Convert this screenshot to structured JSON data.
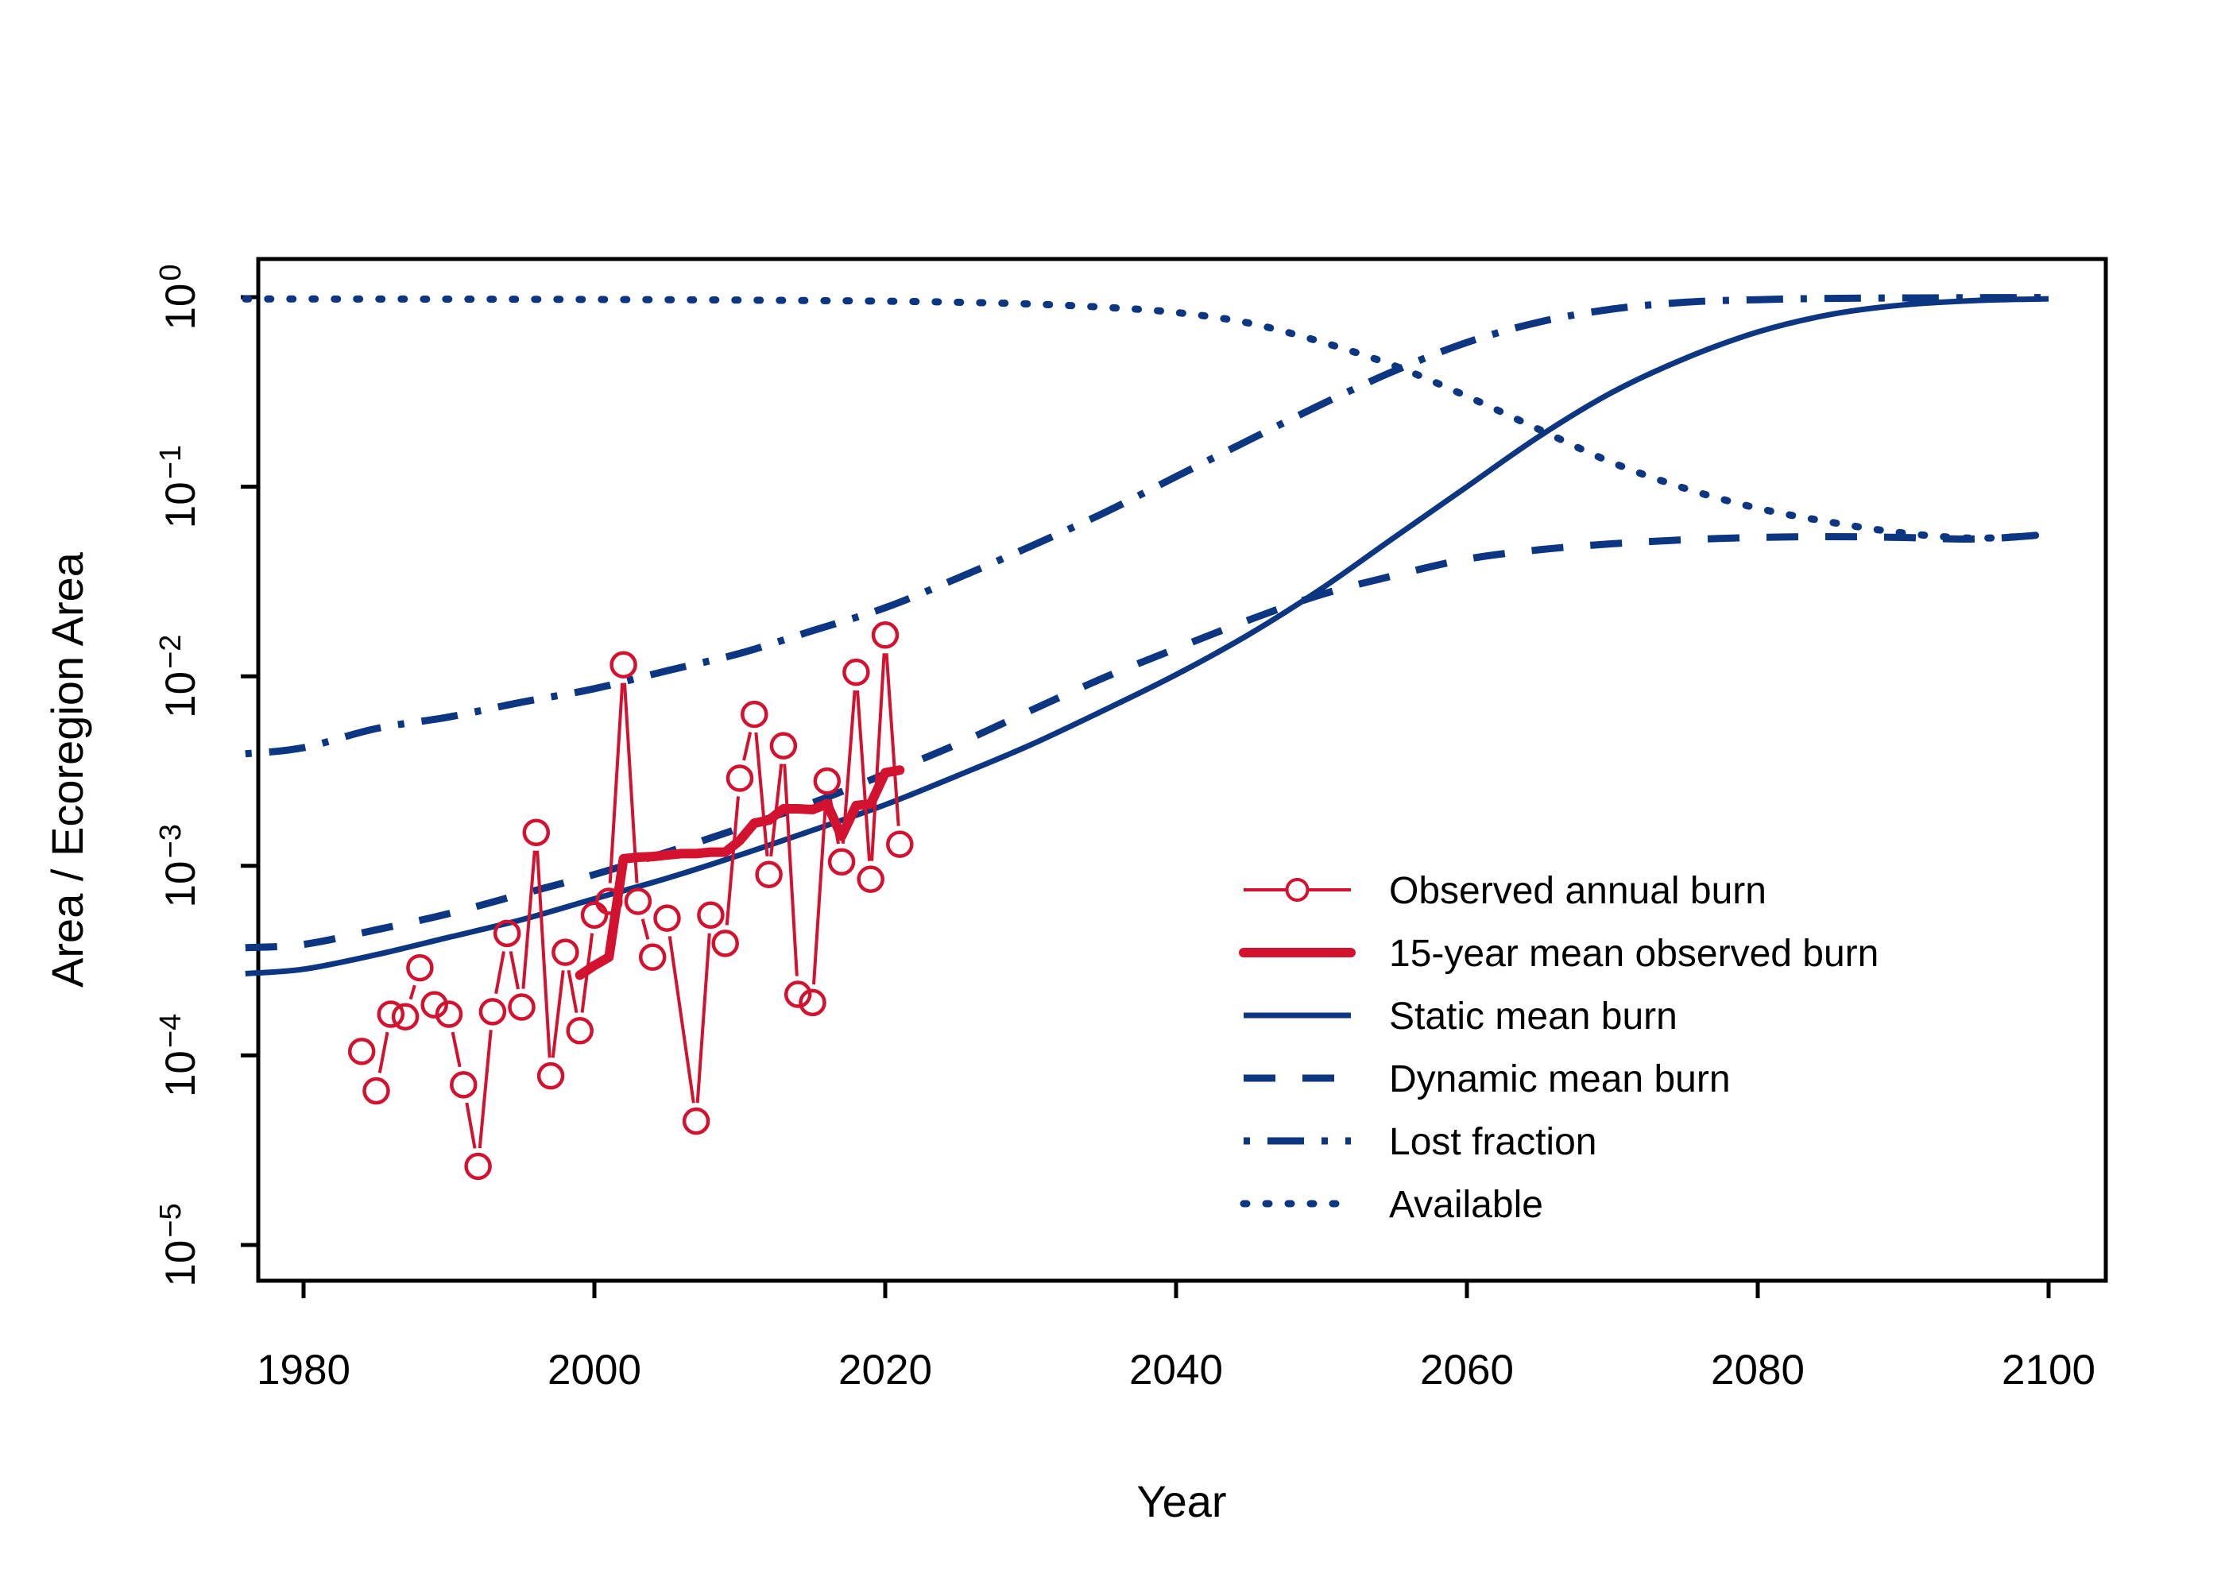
{
  "page": {
    "background": "#ffffff"
  },
  "chart_data": {
    "type": "line",
    "title": "",
    "xlabel": "Year",
    "ylabel": "Area / Ecoregion Area",
    "x_axis": {
      "ticks": [
        1980,
        2000,
        2020,
        2040,
        2060,
        2080,
        2100
      ],
      "min": 1976,
      "max": 2104
    },
    "y_axis": {
      "scale": "log10",
      "base": 10,
      "tick_exponents": [
        0,
        -1,
        -2,
        -3,
        -4,
        -5
      ],
      "min_exp": -5.2,
      "max_exp": 0.2,
      "grid": false
    },
    "colors": {
      "red": "#D2122E",
      "blue": "#0C3582",
      "axis": "#000000",
      "text": "#000000"
    },
    "series": [
      {
        "id": "observed",
        "name": "Observed annual burn",
        "color": "red",
        "style": "open-circles-line",
        "line_width": 4,
        "marker_radius": 15,
        "points": [
          [
            1984,
            0.000105
          ],
          [
            1985,
            6.5e-05
          ],
          [
            1986,
            0.000165
          ],
          [
            1987,
            0.00016
          ],
          [
            1988,
            0.00029
          ],
          [
            1989,
            0.000185
          ],
          [
            1990,
            0.000165
          ],
          [
            1991,
            7e-05
          ],
          [
            1992,
            2.6e-05
          ],
          [
            1993,
            0.00017
          ],
          [
            1994,
            0.00044
          ],
          [
            1995,
            0.00018
          ],
          [
            1996,
            0.0015
          ],
          [
            1997,
            7.8e-05
          ],
          [
            1998,
            0.00035
          ],
          [
            1999,
            0.000135
          ],
          [
            2000,
            0.00055
          ],
          [
            2001,
            0.00065
          ],
          [
            2002,
            0.0115
          ],
          [
            2003,
            0.00065
          ],
          [
            2004,
            0.00033
          ],
          [
            2005,
            0.00053
          ],
          [
            2007,
            4.5e-05
          ],
          [
            2008,
            0.00055
          ],
          [
            2009,
            0.00039
          ],
          [
            2010,
            0.0029
          ],
          [
            2011,
            0.0063
          ],
          [
            2012,
            0.0009
          ],
          [
            2013,
            0.0043
          ],
          [
            2014,
            0.00021
          ],
          [
            2015,
            0.00019
          ],
          [
            2016,
            0.0028
          ],
          [
            2017,
            0.00105
          ],
          [
            2018,
            0.0105
          ],
          [
            2019,
            0.00085
          ],
          [
            2020,
            0.0165
          ],
          [
            2021,
            0.0013
          ]
        ]
      },
      {
        "id": "mean15",
        "name": "15-year mean observed burn",
        "color": "red",
        "style": "solid",
        "line_width": 12,
        "points": [
          [
            1999,
            0.000265
          ],
          [
            2000,
            0.000298
          ],
          [
            2001,
            0.00033
          ],
          [
            2002,
            0.00109
          ],
          [
            2003,
            0.00111
          ],
          [
            2004,
            0.00112
          ],
          [
            2005,
            0.00114
          ],
          [
            2006,
            0.00116
          ],
          [
            2007,
            0.00116
          ],
          [
            2008,
            0.00118
          ],
          [
            2009,
            0.00118
          ],
          [
            2010,
            0.00136
          ],
          [
            2011,
            0.00168
          ],
          [
            2012,
            0.00174
          ],
          [
            2013,
            0.002
          ],
          [
            2014,
            0.002
          ],
          [
            2015,
            0.00198
          ],
          [
            2016,
            0.00212
          ],
          [
            2017,
            0.00143
          ],
          [
            2018,
            0.00208
          ],
          [
            2019,
            0.00212
          ],
          [
            2020,
            0.0031
          ],
          [
            2021,
            0.0032
          ]
        ]
      },
      {
        "id": "static",
        "name": "Static mean burn",
        "color": "blue",
        "style": "solid",
        "line_width": 7,
        "smooth": true,
        "points": [
          [
            1976,
            0.00027
          ],
          [
            1980,
            0.000285
          ],
          [
            1985,
            0.00034
          ],
          [
            1990,
            0.00042
          ],
          [
            1995,
            0.00052
          ],
          [
            2000,
            0.00067
          ],
          [
            2005,
            0.00086
          ],
          [
            2010,
            0.00114
          ],
          [
            2015,
            0.00154
          ],
          [
            2020,
            0.0021
          ],
          [
            2025,
            0.003
          ],
          [
            2030,
            0.00435
          ],
          [
            2035,
            0.0066
          ],
          [
            2040,
            0.0102
          ],
          [
            2045,
            0.0166
          ],
          [
            2050,
            0.029
          ],
          [
            2055,
            0.054
          ],
          [
            2060,
            0.1
          ],
          [
            2065,
            0.185
          ],
          [
            2070,
            0.315
          ],
          [
            2075,
            0.475
          ],
          [
            2080,
            0.655
          ],
          [
            2085,
            0.81
          ],
          [
            2090,
            0.91
          ],
          [
            2095,
            0.96
          ],
          [
            2100,
            0.98
          ]
        ]
      },
      {
        "id": "dynamic",
        "name": "Dynamic mean burn",
        "color": "blue",
        "style": "dashed",
        "dash": [
          40,
          34
        ],
        "line_width": 9,
        "smooth": true,
        "points": [
          [
            1976,
            0.00037
          ],
          [
            1980,
            0.000385
          ],
          [
            1985,
            0.00046
          ],
          [
            1990,
            0.00056
          ],
          [
            1995,
            0.00071
          ],
          [
            2000,
            0.0009
          ],
          [
            2005,
            0.00118
          ],
          [
            2010,
            0.00158
          ],
          [
            2015,
            0.00215
          ],
          [
            2020,
            0.00305
          ],
          [
            2025,
            0.0044
          ],
          [
            2030,
            0.0066
          ],
          [
            2035,
            0.0098
          ],
          [
            2040,
            0.014
          ],
          [
            2045,
            0.0198
          ],
          [
            2050,
            0.027
          ],
          [
            2055,
            0.034
          ],
          [
            2060,
            0.0415
          ],
          [
            2065,
            0.0465
          ],
          [
            2070,
            0.05
          ],
          [
            2075,
            0.0525
          ],
          [
            2080,
            0.054
          ],
          [
            2085,
            0.0545
          ],
          [
            2090,
            0.054
          ],
          [
            2095,
            0.053
          ],
          [
            2100,
            0.056
          ]
        ]
      },
      {
        "id": "lost",
        "name": "Lost fraction",
        "color": "blue",
        "style": "dashdot",
        "dash": [
          8,
          22,
          46,
          22
        ],
        "line_width": 9,
        "smooth": true,
        "points": [
          [
            1976,
            0.0039
          ],
          [
            1980,
            0.0042
          ],
          [
            1985,
            0.0053
          ],
          [
            1990,
            0.0061
          ],
          [
            1995,
            0.0073
          ],
          [
            2000,
            0.0086
          ],
          [
            2005,
            0.0107
          ],
          [
            2010,
            0.0132
          ],
          [
            2015,
            0.0174
          ],
          [
            2020,
            0.023
          ],
          [
            2025,
            0.033
          ],
          [
            2030,
            0.0485
          ],
          [
            2035,
            0.0725
          ],
          [
            2040,
            0.113
          ],
          [
            2045,
            0.176
          ],
          [
            2050,
            0.272
          ],
          [
            2055,
            0.408
          ],
          [
            2060,
            0.577
          ],
          [
            2065,
            0.74
          ],
          [
            2070,
            0.865
          ],
          [
            2075,
            0.94
          ],
          [
            2080,
            0.97
          ],
          [
            2085,
            0.985
          ],
          [
            2090,
            0.99
          ],
          [
            2095,
            0.993
          ],
          [
            2100,
            0.995
          ]
        ]
      },
      {
        "id": "available",
        "name": "Available",
        "color": "blue",
        "style": "dotted",
        "dash": [
          4,
          24
        ],
        "line_width": 9,
        "linecap": "round",
        "smooth": true,
        "points": [
          [
            1976,
            0.978
          ],
          [
            1980,
            0.978
          ],
          [
            1990,
            0.976
          ],
          [
            2000,
            0.972
          ],
          [
            2010,
            0.965
          ],
          [
            2020,
            0.952
          ],
          [
            2025,
            0.94
          ],
          [
            2030,
            0.92
          ],
          [
            2035,
            0.885
          ],
          [
            2040,
            0.83
          ],
          [
            2045,
            0.73
          ],
          [
            2050,
            0.58
          ],
          [
            2055,
            0.435
          ],
          [
            2060,
            0.3
          ],
          [
            2065,
            0.2
          ],
          [
            2070,
            0.134
          ],
          [
            2075,
            0.098
          ],
          [
            2080,
            0.077
          ],
          [
            2085,
            0.065
          ],
          [
            2090,
            0.057
          ],
          [
            2095,
            0.0535
          ],
          [
            2100,
            0.056
          ]
        ]
      }
    ],
    "legend": {
      "position": "bottom-right",
      "entries": [
        {
          "series": "observed",
          "label": "Observed annual burn"
        },
        {
          "series": "mean15",
          "label": "15-year mean observed burn"
        },
        {
          "series": "static",
          "label": "Static mean burn"
        },
        {
          "series": "dynamic",
          "label": "Dynamic mean burn"
        },
        {
          "series": "lost",
          "label": "Lost fraction"
        },
        {
          "series": "available",
          "label": "Available"
        }
      ]
    }
  }
}
